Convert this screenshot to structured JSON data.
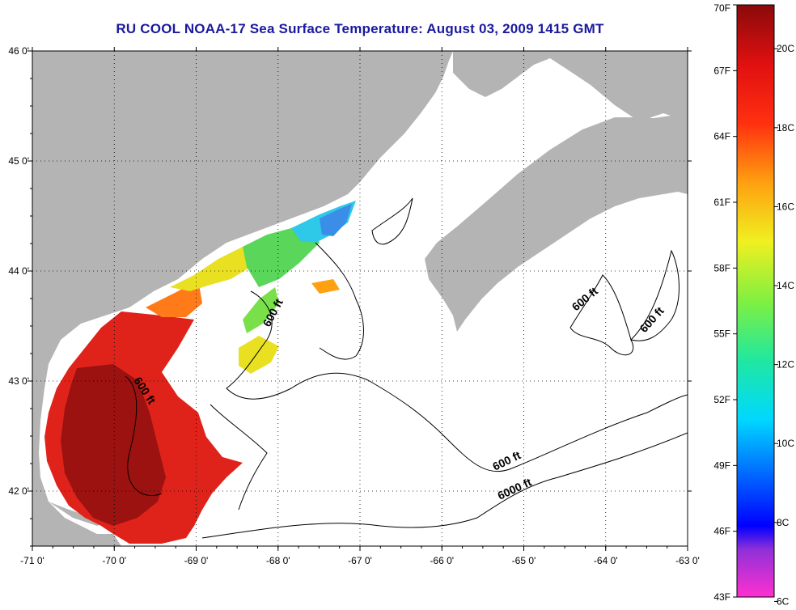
{
  "title": "RU COOL  NOAA-17  Sea Surface Temperature:  August 03, 2009 1415 GMT",
  "axes": {
    "x_ticks": [
      "-71 0'",
      "-70 0'",
      "-69 0'",
      "-68 0'",
      "-67 0'",
      "-66 0'",
      "-65 0'",
      "-64 0'",
      "-63 0'"
    ],
    "y_ticks": [
      "46 0'",
      "45 0'",
      "44 0'",
      "43 0'",
      "42 0'"
    ],
    "x_range": [
      -71,
      -63
    ],
    "y_range": [
      41.5,
      46
    ],
    "grid": "dotted"
  },
  "contour_labels": [
    {
      "text": "600 ft"
    },
    {
      "text": "600 ft"
    },
    {
      "text": "600 ft"
    },
    {
      "text": "600 ft"
    },
    {
      "text": "600 ft"
    },
    {
      "text": "6000 ft"
    }
  ],
  "colorbar": {
    "fahrenheit_labels": [
      "70F",
      "67F",
      "64F",
      "61F",
      "58F",
      "55F",
      "52F",
      "49F",
      "46F",
      "43F"
    ],
    "celsius_labels": [
      "20C",
      "18C",
      "16C",
      "14C",
      "12C",
      "10C",
      "8C",
      "6C"
    ],
    "range_f": [
      43,
      70
    ],
    "range_c": [
      6,
      21.1
    ]
  },
  "colors": {
    "land": "#b4b4b4",
    "ocean": "#ffffff",
    "title": "#1a1a9e",
    "warm": "#e0231a",
    "hot": "#8e0f0f",
    "yellow": "#e8e020",
    "green": "#5ad65a",
    "cyan": "#2ec8e8",
    "blue": "#3a8ee8"
  }
}
